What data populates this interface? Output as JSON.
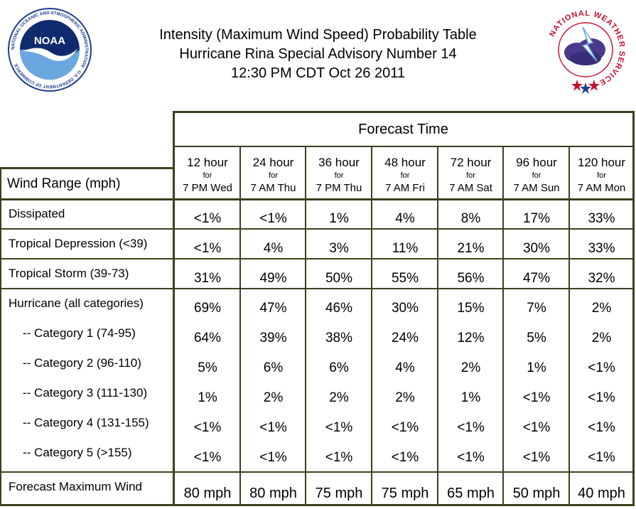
{
  "header": {
    "noaa_logo_text": "NOAA",
    "noaa_ring_text": "NATIONAL OCEANIC AND ATMOSPHERIC ADMINISTRATION · U.S. DEPARTMENT OF COMMERCE",
    "nws_ring_text": "NATIONAL WEATHER SERVICE",
    "title_line1": "Intensity (Maximum Wind Speed) Probability Table",
    "title_line2": "Hurricane Rina Special Advisory Number 14",
    "title_line3": "12:30 PM CDT Oct 26 2011"
  },
  "table": {
    "forecast_time_label": "Forecast Time",
    "wind_range_label": "Wind Range (mph)",
    "columns": [
      {
        "hour": "12 hour",
        "for": "for",
        "time": "7 PM Wed"
      },
      {
        "hour": "24 hour",
        "for": "for",
        "time": "7 AM Thu"
      },
      {
        "hour": "36 hour",
        "for": "for",
        "time": "7 PM Thu"
      },
      {
        "hour": "48 hour",
        "for": "for",
        "time": "7 AM Fri"
      },
      {
        "hour": "72 hour",
        "for": "for",
        "time": "7 AM Sat"
      },
      {
        "hour": "96 hour",
        "for": "for",
        "time": "7 AM Sun"
      },
      {
        "hour": "120 hour",
        "for": "for",
        "time": "7 AM Mon"
      }
    ],
    "rows": [
      {
        "label": "Dissipated",
        "values": [
          "<1%",
          "<1%",
          "1%",
          "4%",
          "8%",
          "17%",
          "33%"
        ]
      },
      {
        "label": "Tropical Depression (<39)",
        "values": [
          "<1%",
          "4%",
          "3%",
          "11%",
          "21%",
          "30%",
          "33%"
        ]
      },
      {
        "label": "Tropical Storm (39-73)",
        "values": [
          "31%",
          "49%",
          "50%",
          "55%",
          "56%",
          "47%",
          "32%"
        ]
      },
      {
        "label": "Hurricane (all categories)",
        "values": [
          "69%",
          "47%",
          "46%",
          "30%",
          "15%",
          "7%",
          "2%"
        ]
      },
      {
        "label": "-- Category 1 (74-95)",
        "values": [
          "64%",
          "39%",
          "38%",
          "24%",
          "12%",
          "5%",
          "2%"
        ]
      },
      {
        "label": "-- Category 2 (96-110)",
        "values": [
          "5%",
          "6%",
          "6%",
          "4%",
          "2%",
          "1%",
          "<1%"
        ]
      },
      {
        "label": "-- Category 3 (111-130)",
        "values": [
          "1%",
          "2%",
          "2%",
          "2%",
          "1%",
          "<1%",
          "<1%"
        ]
      },
      {
        "label": "-- Category 4 (131-155)",
        "values": [
          "<1%",
          "<1%",
          "<1%",
          "<1%",
          "<1%",
          "<1%",
          "<1%"
        ]
      },
      {
        "label": "-- Category 5 (>155)",
        "values": [
          "<1%",
          "<1%",
          "<1%",
          "<1%",
          "<1%",
          "<1%",
          "<1%"
        ]
      },
      {
        "label": "Forecast Maximum Wind",
        "values": [
          "80 mph",
          "80 mph",
          "75 mph",
          "75 mph",
          "65 mph",
          "50 mph",
          "40 mph"
        ]
      }
    ]
  },
  "colors": {
    "border": "#3f3f1f",
    "noaa_blue": "#1d3f8f",
    "noaa_navy": "#0f2a6e",
    "nws_red": "#c8102e",
    "nws_cloud": "#4b3a8c"
  }
}
